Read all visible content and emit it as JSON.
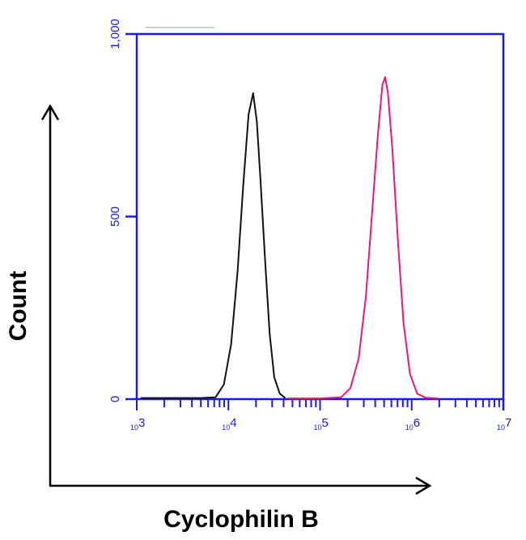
{
  "chart_data": {
    "type": "line",
    "xlabel": "Cyclophilin B",
    "ylabel": "Count",
    "x_scale": "log",
    "xlim": [
      1000,
      10000000
    ],
    "ylim": [
      0,
      1000
    ],
    "x_ticks": [
      {
        "base": "10",
        "exp": "3"
      },
      {
        "base": "10",
        "exp": "4"
      },
      {
        "base": "10",
        "exp": "5"
      },
      {
        "base": "10",
        "exp": "6"
      },
      {
        "base": "10",
        "exp": "7"
      }
    ],
    "y_ticks": [
      "0",
      "500",
      "1,000"
    ],
    "grid": false,
    "axis_color": "#1a1ae6",
    "series": [
      {
        "color": "#111111",
        "points": [
          [
            1100,
            3
          ],
          [
            3000,
            3
          ],
          [
            5000,
            3
          ],
          [
            7244,
            5
          ],
          [
            8913,
            40
          ],
          [
            10715,
            150
          ],
          [
            12589,
            350
          ],
          [
            14454,
            580
          ],
          [
            16596,
            780
          ],
          [
            18621,
            838
          ],
          [
            20417,
            760
          ],
          [
            22387,
            600
          ],
          [
            25119,
            380
          ],
          [
            28184,
            180
          ],
          [
            31623,
            60
          ],
          [
            36308,
            15
          ],
          [
            41687,
            3
          ]
        ]
      },
      {
        "color": "#e8177a",
        "points": [
          [
            45000,
            2
          ],
          [
            100000,
            2
          ],
          [
            169824,
            5
          ],
          [
            213796,
            30
          ],
          [
            263027,
            110
          ],
          [
            316228,
            280
          ],
          [
            371535,
            520
          ],
          [
            426580,
            720
          ],
          [
            478630,
            860
          ],
          [
            512861,
            882
          ],
          [
            549541,
            840
          ],
          [
            616595,
            680
          ],
          [
            707946,
            430
          ],
          [
            812831,
            210
          ],
          [
            954993,
            70
          ],
          [
            1148154,
            15
          ],
          [
            1412538,
            4
          ],
          [
            1949845,
            2
          ]
        ]
      }
    ]
  }
}
